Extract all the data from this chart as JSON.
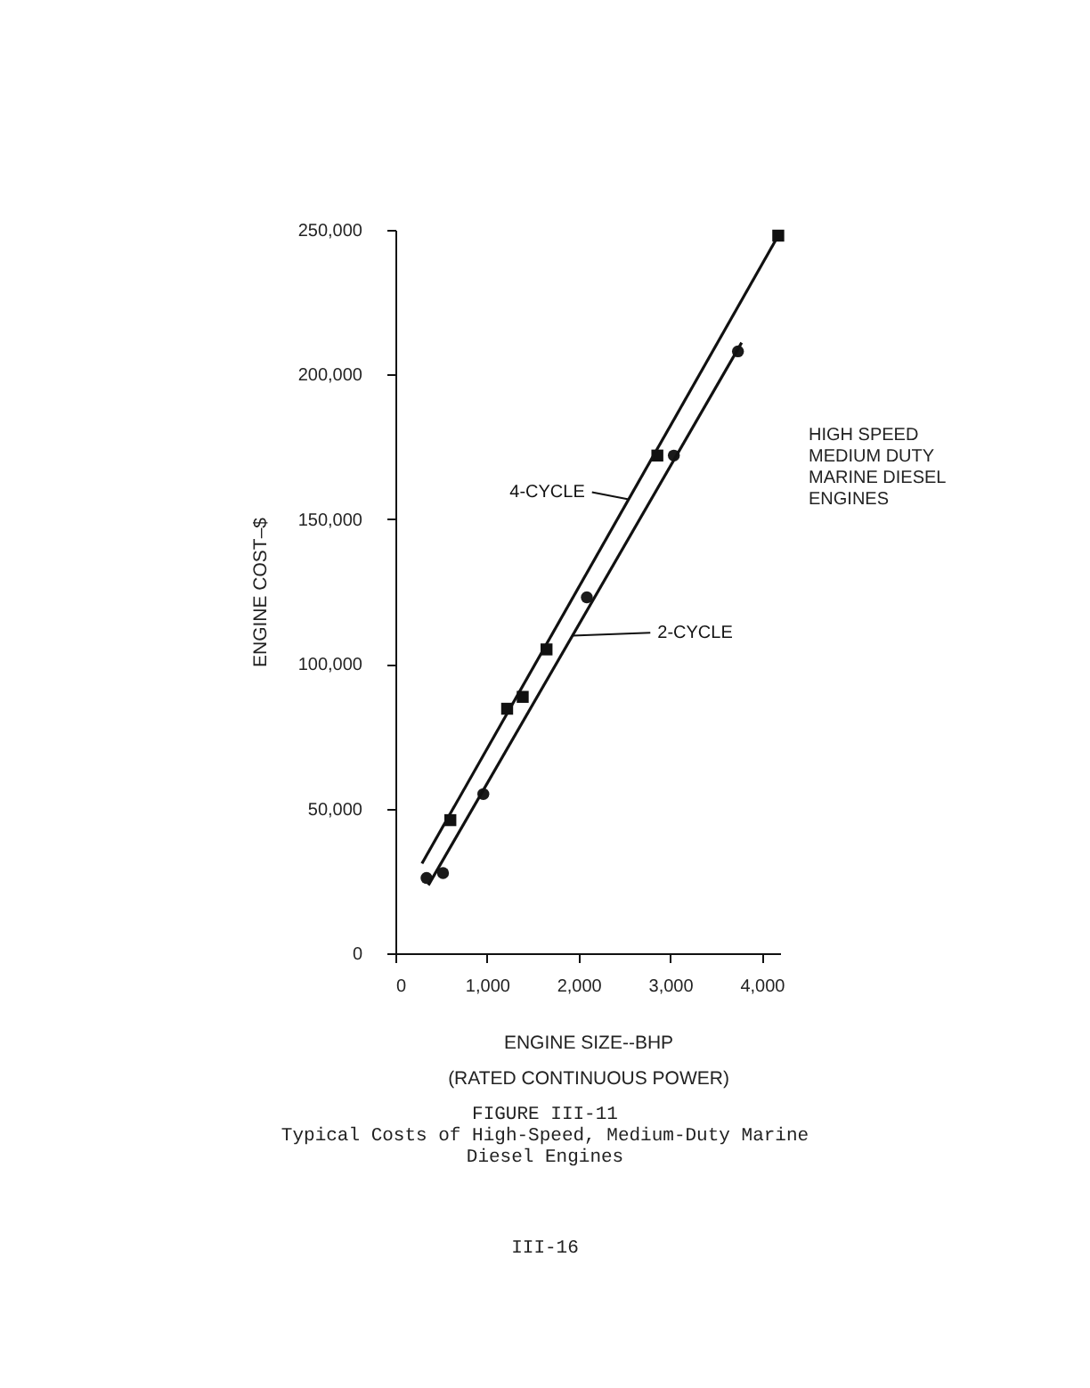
{
  "chart_data": {
    "type": "scatter",
    "title": "FIGURE III-11",
    "subtitle": "Typical Costs of High-Speed, Medium-Duty Marine Diesel Engines",
    "xlabel": "ENGINE SIZE--BHP\n(RATED CONTINUOUS POWER)",
    "ylabel": "ENGINE COST–$",
    "xlim": [
      0,
      4200
    ],
    "ylim": [
      0,
      250000
    ],
    "xticks": [
      0,
      {
        "value": 1000,
        "label": "1,000"
      },
      {
        "value": 2000,
        "label": "2,000"
      },
      {
        "value": 3000,
        "label": "3,000"
      },
      {
        "value": 4000,
        "label": "4,000"
      }
    ],
    "yticks": [
      0,
      {
        "value": 50000,
        "label": "50,000"
      },
      {
        "value": 100000,
        "label": "100,000"
      },
      {
        "value": 150000,
        "label": "150,000"
      },
      {
        "value": 200000,
        "label": "200,000"
      },
      {
        "value": 250000,
        "label": "250,000"
      }
    ],
    "series": [
      {
        "marker": "square",
        "color": "#111111",
        "x": [
          600,
          1220,
          1390,
          1650,
          2860,
          4180
        ],
        "values": [
          46000,
          84500,
          88600,
          105000,
          172000,
          248000
        ]
      },
      {
        "marker": "circle",
        "color": "#1a1a1a",
        "x": [
          340,
          520,
          960,
          2090,
          3040,
          3740
        ],
        "values": [
          26000,
          27700,
          55000,
          123000,
          172000,
          208000
        ]
      },
      {
        "type": "line",
        "name": "4-CYCLE",
        "marker": "none",
        "color": "#111111",
        "x": [
          290,
          4180
        ],
        "values": [
          31000,
          248000
        ]
      },
      {
        "type": "line",
        "name": "2-CYCLE",
        "marker": "none",
        "color": "#111111",
        "x": [
          360,
          3780
        ],
        "values": [
          23500,
          211000
        ]
      }
    ],
    "annotations": [
      "HIGH SPEED\nMEDIUM DUTY\nMARINE DIESEL\nENGINES",
      "III-16"
    ]
  }
}
